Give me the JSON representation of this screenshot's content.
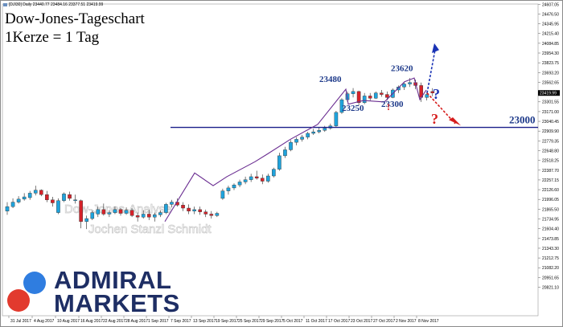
{
  "header": {
    "instrument_line": "[DJI30] Daily  23440.77 23484.16 23377.51 23419.99",
    "title_line1": "Dow-Jones-Tageschart",
    "title_line2": "1Kerze = 1 Tag"
  },
  "watermark": {
    "line1": "Dow-Jones-Analyse",
    "line2": "Jochen Stanzl Schmidt"
  },
  "logo": {
    "line1": "ADMIRAL",
    "line2": "MARKETS",
    "colors": {
      "text": "#1e2e64",
      "circle_blue": "#2f7de0",
      "circle_red": "#e23a2e"
    }
  },
  "chart_data": {
    "type": "candlestick",
    "title": "Dow-Jones-Tageschart",
    "subtitle": "1Kerze = 1 Tag",
    "ylim": [
      20440,
      24610
    ],
    "y_ticks": [
      "24607.05",
      "24476.50",
      "24345.95",
      "24215.40",
      "24084.85",
      "23954.30",
      "23823.75",
      "23693.20",
      "23562.65",
      "23432.10",
      "23301.55",
      "23171.00",
      "23040.45",
      "22909.90",
      "22779.35",
      "22648.80",
      "22518.25",
      "22387.70",
      "22257.15",
      "22126.60",
      "21996.05",
      "21865.50",
      "21734.95",
      "21604.40",
      "21473.85",
      "21343.30",
      "21212.75",
      "21082.20",
      "20951.65",
      "20821.10"
    ],
    "current_price": "23419.99",
    "x_ticks": [
      "31 Jul 2017",
      "4 Aug 2017",
      "10 Aug 2017",
      "16 Aug 2017",
      "22 Aug 2017",
      "28 Aug 2017",
      "1 Sep 2017",
      "7 Sep 2017",
      "13 Sep 2017",
      "19 Sep 2017",
      "25 Sep 2017",
      "29 Sep 2017",
      "5 Oct 2017",
      "11 Oct 2017",
      "17 Oct 2017",
      "23 Oct 2017",
      "27 Oct 2017",
      "2 Nov 2017",
      "8 Nov 2017"
    ],
    "candles": [
      {
        "o": 21840,
        "h": 21960,
        "l": 21790,
        "c": 21900
      },
      {
        "o": 21900,
        "h": 22010,
        "l": 21880,
        "c": 21960
      },
      {
        "o": 21960,
        "h": 22040,
        "l": 21940,
        "c": 22000
      },
      {
        "o": 22000,
        "h": 22080,
        "l": 21980,
        "c": 22030
      },
      {
        "o": 22020,
        "h": 22110,
        "l": 21990,
        "c": 22080
      },
      {
        "o": 22080,
        "h": 22180,
        "l": 22050,
        "c": 22120
      },
      {
        "o": 22120,
        "h": 22130,
        "l": 22040,
        "c": 22060
      },
      {
        "o": 22060,
        "h": 22110,
        "l": 21960,
        "c": 21990
      },
      {
        "o": 21990,
        "h": 22030,
        "l": 21900,
        "c": 21950
      },
      {
        "o": 21820,
        "h": 22010,
        "l": 21800,
        "c": 21980
      },
      {
        "o": 21980,
        "h": 22090,
        "l": 21960,
        "c": 22070
      },
      {
        "o": 22060,
        "h": 22100,
        "l": 21980,
        "c": 22010
      },
      {
        "o": 21980,
        "h": 22060,
        "l": 21940,
        "c": 21990
      },
      {
        "o": 21980,
        "h": 21995,
        "l": 21610,
        "c": 21700
      },
      {
        "o": 21700,
        "h": 21780,
        "l": 21600,
        "c": 21740
      },
      {
        "o": 21740,
        "h": 21850,
        "l": 21720,
        "c": 21820
      },
      {
        "o": 21800,
        "h": 21900,
        "l": 21760,
        "c": 21860
      },
      {
        "o": 21860,
        "h": 21940,
        "l": 21780,
        "c": 21800
      },
      {
        "o": 21800,
        "h": 21850,
        "l": 21760,
        "c": 21820
      },
      {
        "o": 21820,
        "h": 21900,
        "l": 21800,
        "c": 21860
      },
      {
        "o": 21860,
        "h": 21880,
        "l": 21780,
        "c": 21810
      },
      {
        "o": 21810,
        "h": 21890,
        "l": 21790,
        "c": 21850
      },
      {
        "o": 21850,
        "h": 21880,
        "l": 21760,
        "c": 21780
      },
      {
        "o": 21780,
        "h": 21820,
        "l": 21700,
        "c": 21760
      },
      {
        "o": 21760,
        "h": 21850,
        "l": 21740,
        "c": 21800
      },
      {
        "o": 21800,
        "h": 21860,
        "l": 21720,
        "c": 21760
      },
      {
        "o": 21760,
        "h": 21820,
        "l": 21700,
        "c": 21790
      },
      {
        "o": 21790,
        "h": 21850,
        "l": 21760,
        "c": 21820
      },
      {
        "o": 21820,
        "h": 21950,
        "l": 21800,
        "c": 21930
      },
      {
        "o": 21930,
        "h": 21990,
        "l": 21890,
        "c": 21960
      },
      {
        "o": 21960,
        "h": 22010,
        "l": 21900,
        "c": 21920
      },
      {
        "o": 21920,
        "h": 21960,
        "l": 21840,
        "c": 21880
      },
      {
        "o": 21880,
        "h": 21930,
        "l": 21800,
        "c": 21840
      },
      {
        "o": 21840,
        "h": 21900,
        "l": 21800,
        "c": 21860
      },
      {
        "o": 21860,
        "h": 21900,
        "l": 21790,
        "c": 21830
      },
      {
        "o": 21830,
        "h": 21860,
        "l": 21760,
        "c": 21800
      },
      {
        "o": 21800,
        "h": 21840,
        "l": 21740,
        "c": 21780
      },
      {
        "o": 21780,
        "h": 21830,
        "l": 21760,
        "c": 21810
      }
    ],
    "candles2": [
      {
        "o": 22010,
        "h": 22140,
        "l": 21990,
        "c": 22110
      },
      {
        "o": 22110,
        "h": 22180,
        "l": 22060,
        "c": 22150
      },
      {
        "o": 22150,
        "h": 22210,
        "l": 22120,
        "c": 22190
      },
      {
        "o": 22190,
        "h": 22260,
        "l": 22160,
        "c": 22230
      },
      {
        "o": 22230,
        "h": 22300,
        "l": 22200,
        "c": 22260
      },
      {
        "o": 22260,
        "h": 22340,
        "l": 22230,
        "c": 22300
      },
      {
        "o": 22300,
        "h": 22380,
        "l": 22260,
        "c": 22280
      },
      {
        "o": 22280,
        "h": 22330,
        "l": 22200,
        "c": 22240
      },
      {
        "o": 22240,
        "h": 22340,
        "l": 22220,
        "c": 22310
      },
      {
        "o": 22310,
        "h": 22420,
        "l": 22290,
        "c": 22400
      },
      {
        "o": 22400,
        "h": 22620,
        "l": 22380,
        "c": 22580
      },
      {
        "o": 22580,
        "h": 22700,
        "l": 22550,
        "c": 22660
      },
      {
        "o": 22660,
        "h": 22790,
        "l": 22640,
        "c": 22760
      },
      {
        "o": 22760,
        "h": 22830,
        "l": 22720,
        "c": 22800
      },
      {
        "o": 22800,
        "h": 22860,
        "l": 22770,
        "c": 22830
      },
      {
        "o": 22830,
        "h": 22900,
        "l": 22800,
        "c": 22880
      },
      {
        "o": 22880,
        "h": 22940,
        "l": 22860,
        "c": 22900
      },
      {
        "o": 22900,
        "h": 22960,
        "l": 22880,
        "c": 22920
      },
      {
        "o": 22920,
        "h": 22980,
        "l": 22900,
        "c": 22950
      },
      {
        "o": 22950,
        "h": 23010,
        "l": 22930,
        "c": 22980
      },
      {
        "o": 22980,
        "h": 23180,
        "l": 22960,
        "c": 23160
      },
      {
        "o": 23160,
        "h": 23350,
        "l": 23140,
        "c": 23330
      },
      {
        "o": 23330,
        "h": 23440,
        "l": 23300,
        "c": 23410
      },
      {
        "o": 23410,
        "h": 23485,
        "l": 23360,
        "c": 23440
      },
      {
        "o": 23440,
        "h": 23450,
        "l": 23250,
        "c": 23290
      },
      {
        "o": 23290,
        "h": 23420,
        "l": 23270,
        "c": 23380
      },
      {
        "o": 23380,
        "h": 23420,
        "l": 23320,
        "c": 23350
      },
      {
        "o": 23350,
        "h": 23440,
        "l": 23340,
        "c": 23420
      },
      {
        "o": 23420,
        "h": 23460,
        "l": 23370,
        "c": 23400
      },
      {
        "o": 23400,
        "h": 23440,
        "l": 23320,
        "c": 23360
      },
      {
        "o": 23360,
        "h": 23480,
        "l": 23350,
        "c": 23460
      },
      {
        "o": 23460,
        "h": 23520,
        "l": 23420,
        "c": 23500
      },
      {
        "o": 23500,
        "h": 23560,
        "l": 23460,
        "c": 23540
      },
      {
        "o": 23540,
        "h": 23620,
        "l": 23500,
        "c": 23560
      },
      {
        "o": 23560,
        "h": 23600,
        "l": 23470,
        "c": 23520
      },
      {
        "o": 23520,
        "h": 23560,
        "l": 23300,
        "c": 23360
      },
      {
        "o": 23360,
        "h": 23440,
        "l": 23320,
        "c": 23400
      },
      {
        "o": 23440,
        "h": 23484,
        "l": 23377,
        "c": 23420
      }
    ],
    "levels": [
      {
        "label": "23000",
        "value": 22960
      }
    ],
    "annotations": [
      {
        "text": "23480",
        "value": 23480
      },
      {
        "text": "23250",
        "value": 23250
      },
      {
        "text": "23620",
        "value": 23620
      },
      {
        "text": "23300",
        "value": 23300
      },
      {
        "text": "!",
        "value": 23300
      },
      {
        "text": "?",
        "value": 23400
      },
      {
        "text": "?",
        "value": 23150
      }
    ],
    "colors": {
      "bull": "#1fa3dc",
      "bear": "#d6222a",
      "wave": "#6a2d91",
      "level": "#1a1f8a",
      "up_arrow": "#1a33b5",
      "down_arrow": "#d61c1c",
      "label": "#1e3a8a",
      "grid": "#c9c9c9"
    }
  }
}
